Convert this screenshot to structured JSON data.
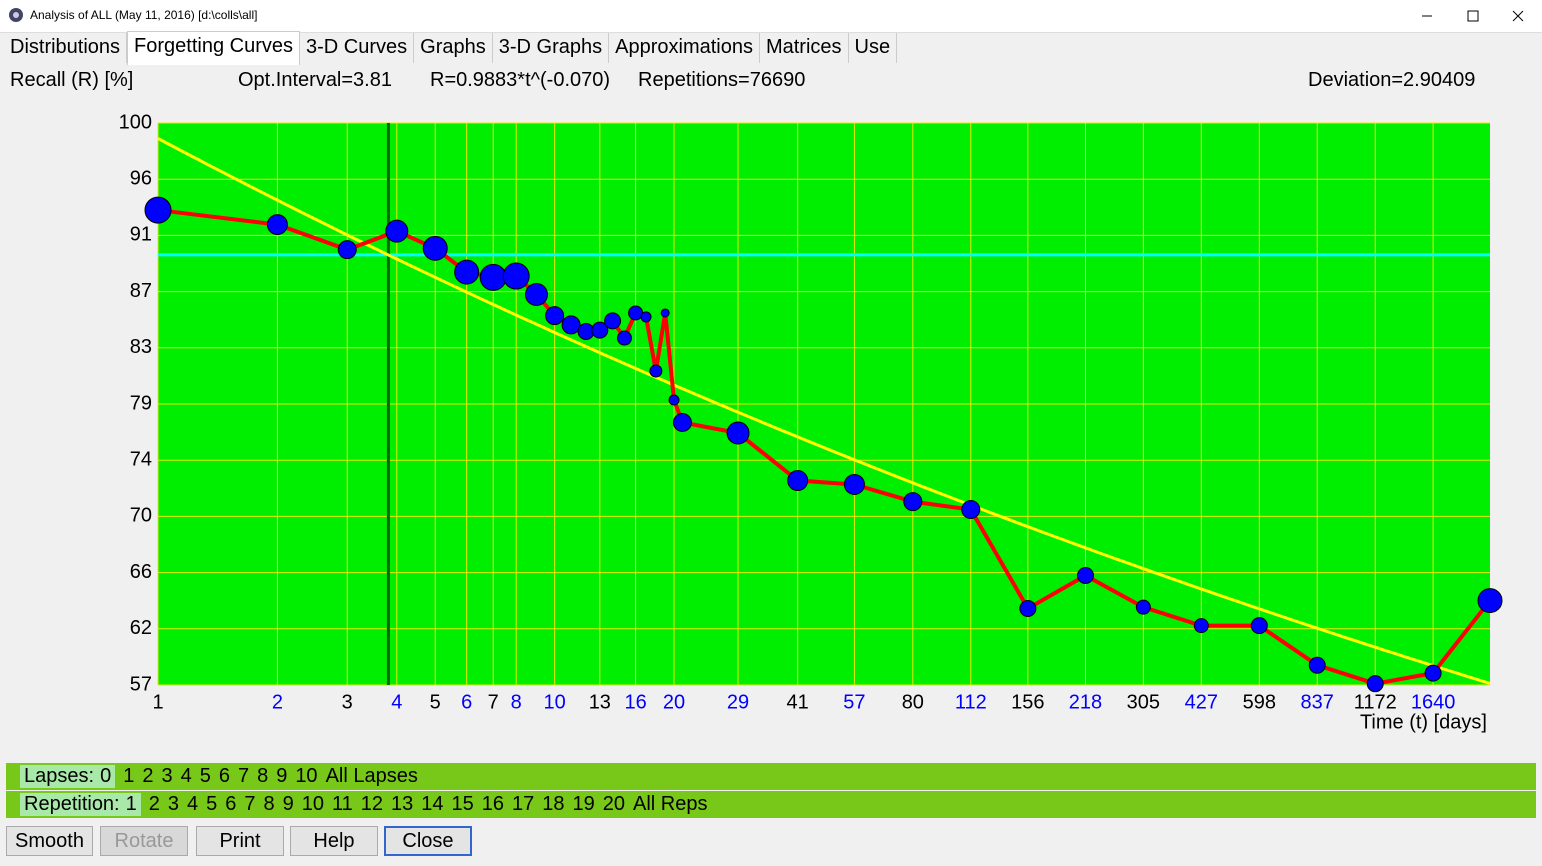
{
  "window": {
    "title": "Analysis of ALL (May 11, 2016) [d:\\colls\\all]"
  },
  "tabs": [
    "Distributions",
    "Forgetting Curves",
    "3-D Curves",
    "Graphs",
    "3-D Graphs",
    "Approximations",
    "Matrices",
    "Use"
  ],
  "active_tab": 1,
  "info": {
    "y_label": "Recall (R) [%]",
    "opt_interval": "Opt.Interval=3.81",
    "formula": "R=0.9883*t^(-0.070)",
    "repetitions": "Repetitions=76690",
    "deviation": "Deviation=2.90409"
  },
  "chart_data": {
    "type": "line",
    "x_label": "Time (t) [days]",
    "x": [
      1,
      2,
      3,
      4,
      5,
      6,
      7,
      8,
      9,
      10,
      11,
      12,
      13,
      14,
      15,
      16,
      17,
      18,
      19,
      20,
      21,
      29,
      41,
      57,
      80,
      112,
      156,
      218,
      305,
      427,
      598,
      837,
      1172,
      1640,
      2282
    ],
    "values": [
      93.4,
      92.3,
      90.4,
      91.8,
      90.5,
      88.7,
      88.3,
      88.4,
      87.0,
      85.4,
      84.7,
      84.2,
      84.3,
      85.0,
      83.7,
      85.6,
      85.3,
      81.2,
      85.6,
      79.0,
      77.3,
      76.5,
      72.9,
      72.6,
      71.3,
      70.7,
      63.2,
      65.7,
      63.3,
      61.9,
      61.9,
      58.9,
      57.5,
      58.3,
      63.8
    ],
    "sizes": [
      13,
      10,
      9,
      11,
      12,
      12,
      13,
      13,
      11,
      9,
      9,
      8,
      8,
      8,
      7,
      7,
      5,
      6,
      4,
      5,
      9,
      11,
      10,
      10,
      9,
      9,
      8,
      8,
      7,
      7,
      8,
      8,
      8,
      8,
      12
    ],
    "line_color": "#ff0000",
    "marker_color": "#0000ff",
    "xscale": "log",
    "xlim": [
      1,
      2282
    ],
    "xticks": [
      1,
      2,
      3,
      4,
      5,
      6,
      7,
      8,
      10,
      13,
      16,
      20,
      29,
      41,
      57,
      80,
      112,
      156,
      218,
      305,
      427,
      598,
      837,
      1172,
      1640
    ],
    "xtick_colors": [
      "#000000",
      "#0000ff",
      "#000000",
      "#0000ff",
      "#000000",
      "#0000ff",
      "#000000",
      "#0000ff",
      "#0000ff",
      "#000000",
      "#0000ff",
      "#0000ff",
      "#0000ff",
      "#000000",
      "#0000ff",
      "#000000",
      "#0000ff",
      "#000000",
      "#0000ff",
      "#000000",
      "#0000ff",
      "#000000",
      "#0000ff",
      "#000000",
      "#0000ff"
    ],
    "ylim": [
      57.4,
      100
    ],
    "yticks": [
      {
        "value": 57.4,
        "label": "57"
      },
      {
        "value": 61.66,
        "label": "62"
      },
      {
        "value": 65.92,
        "label": "66"
      },
      {
        "value": 70.18,
        "label": "70"
      },
      {
        "value": 74.44,
        "label": "74"
      },
      {
        "value": 78.7,
        "label": "79"
      },
      {
        "value": 82.96,
        "label": "83"
      },
      {
        "value": 87.22,
        "label": "87"
      },
      {
        "value": 91.48,
        "label": "91"
      },
      {
        "value": 95.74,
        "label": "96"
      },
      100
    ],
    "grid": true,
    "grid_color": "#e8e800",
    "background": "#00ee00",
    "fit": {
      "a": 98.83,
      "b": -0.07
    },
    "fit_color": "#ffff00",
    "target": 90,
    "target_color": "#00ffff",
    "opt_interval": 3.81,
    "opt_color": "#006600"
  },
  "lapses": {
    "label": "Lapses:",
    "items": [
      "0",
      "1",
      "2",
      "3",
      "4",
      "5",
      "6",
      "7",
      "8",
      "9",
      "10",
      "All Lapses"
    ]
  },
  "repetition": {
    "label": "Repetition:",
    "items": [
      "1",
      "2",
      "3",
      "4",
      "5",
      "6",
      "7",
      "8",
      "9",
      "10",
      "11",
      "12",
      "13",
      "14",
      "15",
      "16",
      "17",
      "18",
      "19",
      "20",
      "All Reps"
    ]
  },
  "buttons": [
    "Smooth",
    "Rotate",
    "Print",
    "Help",
    "Close"
  ]
}
